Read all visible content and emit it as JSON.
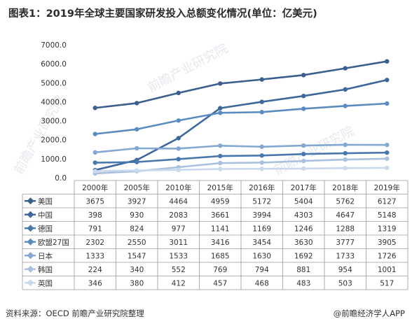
{
  "title": "图表1：2019年全球主要国家研发投入总额变化情况(单位：亿美元)",
  "source": "资料来源：OECD 前瞻产业研究院整理",
  "brand": "@前瞻经济学人APP",
  "watermarks": [
    "前瞻产业研究院",
    "前瞻产业研究院",
    "前瞻产业研究院"
  ],
  "chart_data": {
    "type": "line",
    "categories": [
      "2000年",
      "2005年",
      "2010年",
      "2015年",
      "2016年",
      "2017年",
      "2018年",
      "2019年"
    ],
    "ylim": [
      0,
      7000
    ],
    "yticks": [
      "0.0",
      "1000.0",
      "2000.0",
      "3000.0",
      "4000.0",
      "5000.0",
      "6000.0",
      "7000.0"
    ],
    "grid": false,
    "legend": "table-below",
    "series": [
      {
        "name": "美国",
        "color": "#3b5f8e",
        "values": [
          3675,
          3927,
          4464,
          4959,
          5172,
          5404,
          5762,
          6127
        ]
      },
      {
        "name": "中国",
        "color": "#3e679c",
        "values": [
          398,
          930,
          2083,
          3661,
          3994,
          4303,
          4647,
          5148
        ]
      },
      {
        "name": "德国",
        "color": "#4878ad",
        "values": [
          791,
          824,
          977,
          1141,
          1169,
          1246,
          1288,
          1319
        ]
      },
      {
        "name": "欧盟27国",
        "color": "#5b8cc1",
        "values": [
          2302,
          2550,
          3011,
          3416,
          3454,
          3630,
          3777,
          3905
        ]
      },
      {
        "name": "日本",
        "color": "#82a8d3",
        "values": [
          1333,
          1547,
          1533,
          1685,
          1630,
          1692,
          1733,
          1726
        ]
      },
      {
        "name": "韩国",
        "color": "#a9c1de",
        "values": [
          224,
          340,
          552,
          769,
          794,
          881,
          954,
          1001
        ]
      },
      {
        "name": "英国",
        "color": "#c9d8ec",
        "values": [
          346,
          380,
          412,
          457,
          468,
          483,
          503,
          517
        ]
      }
    ]
  }
}
